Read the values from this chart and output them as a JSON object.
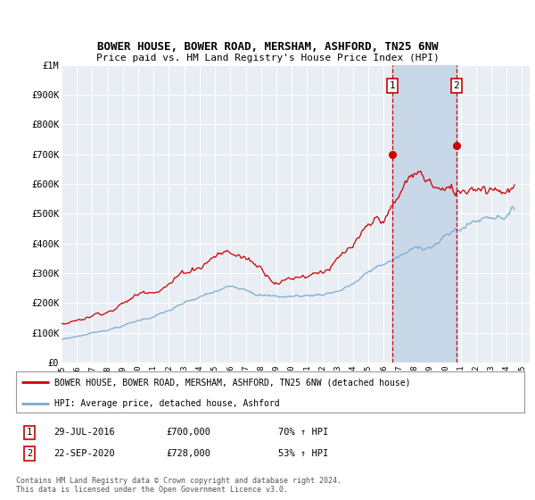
{
  "title1": "BOWER HOUSE, BOWER ROAD, MERSHAM, ASHFORD, TN25 6NW",
  "title2": "Price paid vs. HM Land Registry's House Price Index (HPI)",
  "background_color": "#ffffff",
  "plot_bg_color": "#e8eef4",
  "grid_color": "#ffffff",
  "x_start": 1995.0,
  "x_end": 2025.5,
  "y_min": 0,
  "y_max": 1000000,
  "y_ticks": [
    0,
    100000,
    200000,
    300000,
    400000,
    500000,
    600000,
    700000,
    800000,
    900000,
    1000000
  ],
  "y_tick_labels": [
    "£0",
    "£100K",
    "£200K",
    "£300K",
    "£400K",
    "£500K",
    "£600K",
    "£700K",
    "£800K",
    "£900K",
    "£1M"
  ],
  "sale1_x": 2016.573,
  "sale1_y": 700000,
  "sale1_label": "1",
  "sale1_date": "29-JUL-2016",
  "sale1_price": "£700,000",
  "sale1_hpi": "70% ↑ HPI",
  "sale2_x": 2020.727,
  "sale2_y": 728000,
  "sale2_label": "2",
  "sale2_date": "22-SEP-2020",
  "sale2_price": "£728,000",
  "sale2_hpi": "53% ↑ HPI",
  "red_color": "#cc0000",
  "blue_color": "#7aaacf",
  "sale_dot_color": "#cc0000",
  "vline_color": "#cc0000",
  "span_color": "#c8d8e8",
  "legend_label1": "BOWER HOUSE, BOWER ROAD, MERSHAM, ASHFORD, TN25 6NW (detached house)",
  "legend_label2": "HPI: Average price, detached house, Ashford",
  "footnote": "Contains HM Land Registry data © Crown copyright and database right 2024.\nThis data is licensed under the Open Government Licence v3.0.",
  "x_ticks": [
    1995,
    1996,
    1997,
    1998,
    1999,
    2000,
    2001,
    2002,
    2003,
    2004,
    2005,
    2006,
    2007,
    2008,
    2009,
    2010,
    2011,
    2012,
    2013,
    2014,
    2015,
    2016,
    2017,
    2018,
    2019,
    2020,
    2021,
    2022,
    2023,
    2024,
    2025
  ]
}
